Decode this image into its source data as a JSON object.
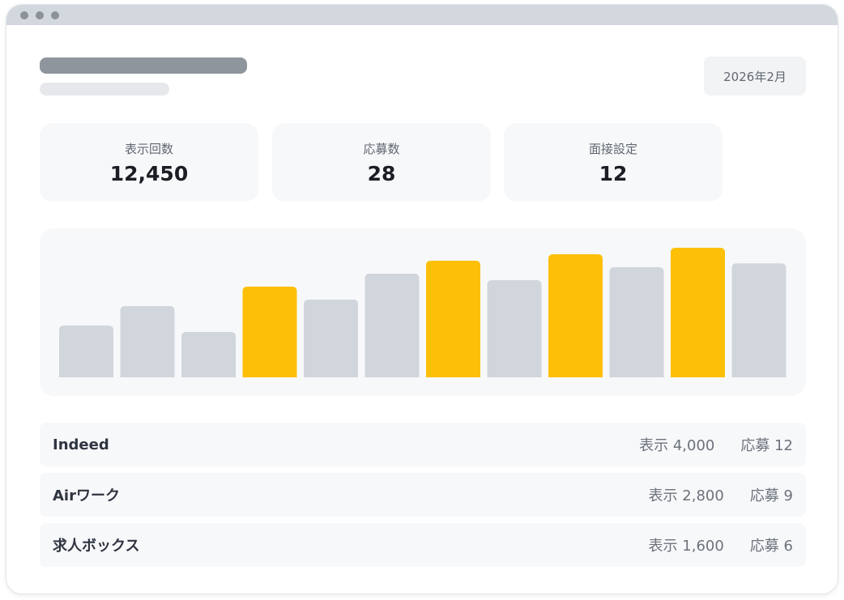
{
  "header": {
    "date": "2026年2月"
  },
  "stats": [
    {
      "label": "表示回数",
      "value": "12,450"
    },
    {
      "label": "応募数",
      "value": "28"
    },
    {
      "label": "面接設定",
      "value": "12"
    }
  ],
  "chart_data": {
    "type": "bar",
    "title": "",
    "xlabel": "",
    "ylabel": "",
    "grid": false,
    "ylim": [
      0,
      100
    ],
    "values": [
      40,
      55,
      35,
      70,
      60,
      80,
      90,
      75,
      95,
      85,
      100,
      88
    ],
    "highlighted": [
      false,
      false,
      false,
      true,
      false,
      false,
      true,
      false,
      true,
      false,
      true,
      false
    ],
    "colors": {
      "default": "#d1d6dd",
      "highlight": "#fdbf08"
    }
  },
  "sources": [
    {
      "name": "Indeed",
      "views": "表示 4,000",
      "applications": "応募 12"
    },
    {
      "name": "Airワーク",
      "views": "表示 2,800",
      "applications": "応募 9"
    },
    {
      "name": "求人ボックス",
      "views": "表示 1,600",
      "applications": "応募 6"
    }
  ]
}
